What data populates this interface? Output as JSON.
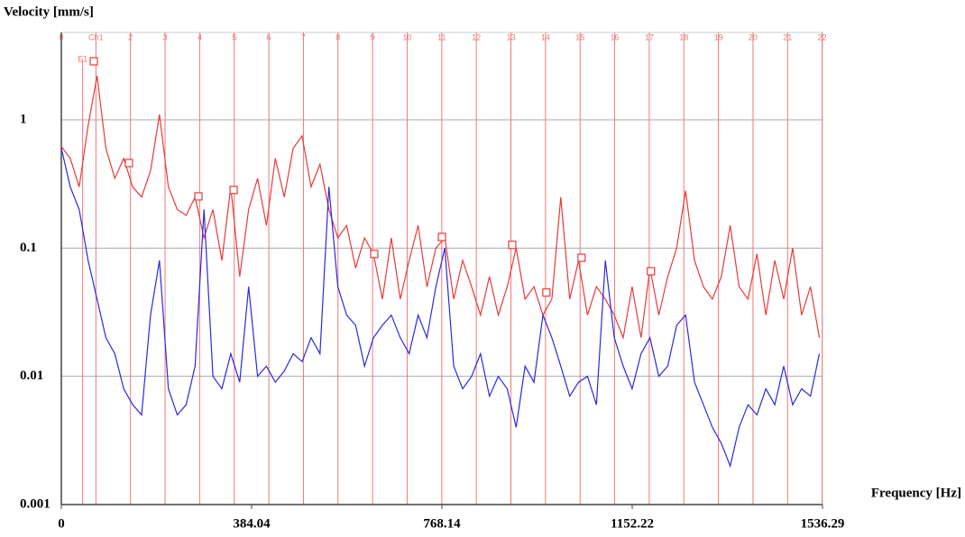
{
  "chart_data": {
    "type": "line",
    "y_label": "Velocity [mm/s]",
    "x_label": "Frequency [Hz]",
    "log_y": true,
    "grid": true,
    "xlim": [
      0,
      1536.29
    ],
    "xticks": [
      0,
      384.04,
      768.14,
      1152.22,
      1536.29
    ],
    "ylim": [
      0.001,
      4.8
    ],
    "yticks": [
      0.001,
      0.01,
      0.1,
      1
    ],
    "harmonics": {
      "color": "#f07878",
      "labels": [
        "0",
        "Ch1",
        "2",
        "3",
        "4",
        "5",
        "6",
        "7",
        "8",
        "9",
        "10",
        "11",
        "12",
        "13",
        "14",
        "15",
        "16",
        "17",
        "18",
        "19",
        "20",
        "21",
        "22"
      ],
      "x": [
        0,
        69.8,
        139.6,
        209.4,
        279.2,
        349,
        418.8,
        488.6,
        558.4,
        628.2,
        698,
        767.8,
        837.6,
        907.4,
        977.2,
        1047,
        1116.8,
        1186.6,
        1256.4,
        1326.2,
        1396,
        1465.8,
        1535.6
      ]
    },
    "cursor": {
      "label": "E1",
      "x": 43
    },
    "x": [
      0,
      18,
      36,
      54,
      72,
      90,
      108,
      126,
      144,
      162,
      180,
      198,
      216,
      234,
      252,
      270,
      288,
      306,
      324,
      342,
      360,
      378,
      396,
      414,
      432,
      450,
      468,
      486,
      504,
      522,
      540,
      558,
      576,
      594,
      612,
      630,
      648,
      666,
      684,
      702,
      720,
      738,
      756,
      774,
      792,
      810,
      828,
      846,
      864,
      882,
      900,
      918,
      936,
      954,
      972,
      990,
      1008,
      1026,
      1044,
      1062,
      1080,
      1098,
      1116,
      1134,
      1152,
      1170,
      1188,
      1206,
      1224,
      1242,
      1260,
      1278,
      1296,
      1314,
      1332,
      1350,
      1368,
      1386,
      1404,
      1422,
      1440,
      1458,
      1476,
      1494,
      1512,
      1530
    ],
    "series": [
      {
        "color": "#e83a3a",
        "values": [
          0.62,
          0.5,
          0.3,
          0.9,
          2.2,
          0.6,
          0.35,
          0.5,
          0.3,
          0.25,
          0.4,
          1.1,
          0.3,
          0.2,
          0.18,
          0.25,
          0.12,
          0.2,
          0.08,
          0.3,
          0.06,
          0.2,
          0.35,
          0.15,
          0.5,
          0.25,
          0.6,
          0.75,
          0.3,
          0.45,
          0.2,
          0.12,
          0.15,
          0.07,
          0.12,
          0.09,
          0.04,
          0.12,
          0.04,
          0.08,
          0.15,
          0.05,
          0.1,
          0.12,
          0.04,
          0.08,
          0.05,
          0.03,
          0.06,
          0.03,
          0.05,
          0.1,
          0.04,
          0.05,
          0.03,
          0.04,
          0.25,
          0.04,
          0.08,
          0.03,
          0.05,
          0.04,
          0.03,
          0.02,
          0.05,
          0.02,
          0.07,
          0.03,
          0.06,
          0.1,
          0.28,
          0.08,
          0.05,
          0.04,
          0.06,
          0.15,
          0.05,
          0.04,
          0.09,
          0.03,
          0.08,
          0.04,
          0.1,
          0.03,
          0.05,
          0.02
        ]
      },
      {
        "color": "#2a2ae0",
        "values": [
          0.6,
          0.3,
          0.2,
          0.08,
          0.04,
          0.02,
          0.015,
          0.008,
          0.006,
          0.005,
          0.03,
          0.08,
          0.008,
          0.005,
          0.006,
          0.012,
          0.2,
          0.01,
          0.008,
          0.015,
          0.009,
          0.05,
          0.01,
          0.012,
          0.009,
          0.011,
          0.015,
          0.013,
          0.02,
          0.015,
          0.3,
          0.05,
          0.03,
          0.025,
          0.012,
          0.02,
          0.025,
          0.03,
          0.02,
          0.015,
          0.03,
          0.02,
          0.05,
          0.1,
          0.012,
          0.008,
          0.01,
          0.015,
          0.007,
          0.01,
          0.008,
          0.004,
          0.012,
          0.009,
          0.03,
          0.02,
          0.012,
          0.007,
          0.009,
          0.01,
          0.006,
          0.08,
          0.02,
          0.012,
          0.008,
          0.015,
          0.02,
          0.01,
          0.012,
          0.025,
          0.03,
          0.009,
          0.006,
          0.004,
          0.003,
          0.002,
          0.004,
          0.006,
          0.005,
          0.008,
          0.006,
          0.012,
          0.006,
          0.008,
          0.007,
          0.015
        ]
      }
    ],
    "markers": {
      "color": "#e83a3a",
      "x": [
        65.5,
        136.5,
        276.7,
        347.7,
        631.6,
        768.2,
        910,
        979,
        1050,
        1190
      ],
      "values": [
        2.86,
        0.46,
        0.253,
        0.284,
        0.09,
        0.122,
        0.106,
        0.045,
        0.084,
        0.066
      ]
    }
  }
}
